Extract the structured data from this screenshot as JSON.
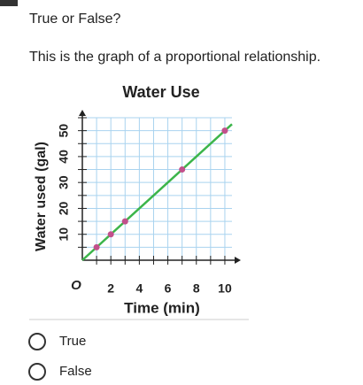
{
  "question": {
    "prompt": "True or False?",
    "statement": "This is the graph of a proportional relationship."
  },
  "chart_data": {
    "type": "scatter",
    "title": "Water Use",
    "x_label": "Time (min)",
    "y_label": "Water used (gal)",
    "origin_label": "O",
    "xlim": [
      0,
      10.5
    ],
    "ylim": [
      0,
      55
    ],
    "xticks": [
      2,
      4,
      6,
      8,
      10
    ],
    "yticks": [
      10,
      20,
      30,
      40,
      50
    ],
    "xgrid": [
      1,
      2,
      3,
      4,
      5,
      6,
      7,
      8,
      9,
      10
    ],
    "ygrid": [
      5,
      10,
      15,
      20,
      25,
      30,
      35,
      40,
      45,
      50,
      55
    ],
    "grid": true,
    "grid_color": "#a9d3ef",
    "line": {
      "color": "#3cb54a",
      "x": [
        0,
        10.5
      ],
      "values": [
        0,
        52.5
      ]
    },
    "series": [
      {
        "color": "#c2508b",
        "x": [
          1,
          2,
          3,
          7,
          10
        ],
        "values": [
          5,
          10,
          15,
          35,
          50
        ]
      }
    ]
  },
  "options": [
    "True",
    "False"
  ]
}
